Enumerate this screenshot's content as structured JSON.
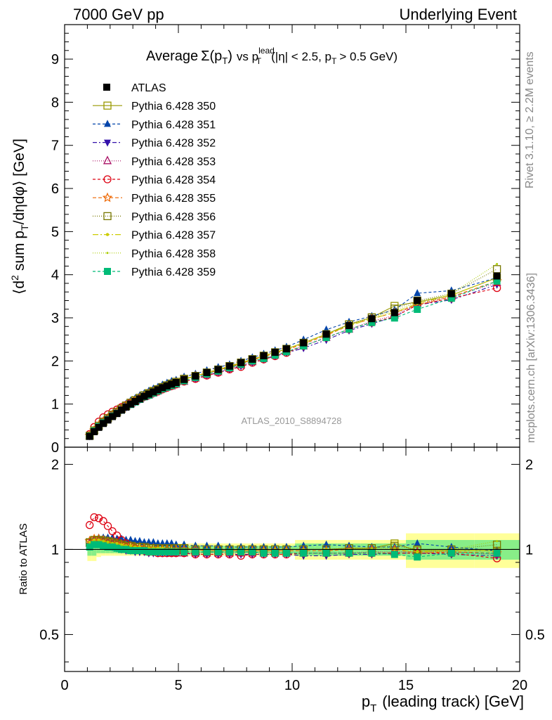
{
  "header": {
    "left": "7000 GeV pp",
    "right": "Underlying Event"
  },
  "side_labels": {
    "rivet": "Rivet 3.1.10, ≥ 2.2M events",
    "mcplots": "mcplots.cern.ch [arXiv:1306.3436]"
  },
  "chart_data": {
    "type": "scatter",
    "title_parts": {
      "average": "Average",
      "sigma": "Σ(p",
      "t_sub": "T",
      "close": ")",
      "vs": "vs p",
      "lead_sup": "lead",
      "lead_sub": "T",
      "cond1": "(|η| < 2.5, p",
      "cond_sub": "T",
      "cond2": "> 0.5 GeV)"
    },
    "analysis_label": "ATLAS_2010_S8894728",
    "ylabel_parts": {
      "main": "⟨d",
      "sup": "2",
      "mid": "sum p",
      "sub": "T",
      "end": "/dηdφ⟩ [GeV]"
    },
    "ratio_ylabel": "Ratio to ATLAS",
    "xlabel_parts": {
      "p": "p",
      "sub": "T",
      "rest": "(leading track) [GeV]"
    },
    "xlim": [
      0,
      20
    ],
    "ylim_main": [
      0,
      9.8
    ],
    "ylim_ratio": [
      0.37,
      2.3
    ],
    "x_ticks": [
      "0",
      "5",
      "10",
      "15",
      "20"
    ],
    "y_ticks_main": [
      "0",
      "1",
      "2",
      "3",
      "4",
      "5",
      "6",
      "7",
      "8",
      "9"
    ],
    "y_ticks_ratio": [
      "0.5",
      "1",
      "2"
    ],
    "legend_position": "top-left",
    "atlas": {
      "name": "ATLAS",
      "x": [
        1.1,
        1.3,
        1.5,
        1.7,
        1.9,
        2.1,
        2.3,
        2.5,
        2.7,
        2.9,
        3.1,
        3.3,
        3.5,
        3.7,
        3.9,
        4.1,
        4.3,
        4.5,
        4.7,
        4.9,
        5.25,
        5.75,
        6.25,
        6.75,
        7.25,
        7.75,
        8.25,
        8.75,
        9.25,
        9.75,
        10.5,
        11.5,
        12.5,
        13.5,
        14.5,
        15.5,
        17.0,
        19.0
      ],
      "y": [
        0.25,
        0.36,
        0.46,
        0.55,
        0.63,
        0.71,
        0.78,
        0.86,
        0.93,
        1.0,
        1.06,
        1.12,
        1.18,
        1.23,
        1.28,
        1.33,
        1.38,
        1.42,
        1.46,
        1.5,
        1.57,
        1.65,
        1.73,
        1.8,
        1.88,
        1.96,
        2.04,
        2.12,
        2.2,
        2.28,
        2.42,
        2.62,
        2.82,
        2.98,
        3.12,
        3.4,
        3.56,
        3.97
      ],
      "band_yellow": [
        0.09,
        0.09,
        0.06,
        0.05,
        0.05,
        0.05,
        0.05,
        0.05,
        0.05,
        0.05,
        0.05,
        0.05,
        0.05,
        0.05,
        0.05,
        0.05,
        0.05,
        0.05,
        0.05,
        0.05,
        0.05,
        0.05,
        0.05,
        0.05,
        0.05,
        0.05,
        0.05,
        0.05,
        0.05,
        0.05,
        0.08,
        0.08,
        0.08,
        0.08,
        0.08,
        0.14,
        0.14,
        0.14
      ],
      "band_green": [
        0.05,
        0.05,
        0.03,
        0.03,
        0.03,
        0.03,
        0.03,
        0.03,
        0.03,
        0.03,
        0.03,
        0.03,
        0.03,
        0.03,
        0.03,
        0.03,
        0.03,
        0.03,
        0.03,
        0.03,
        0.03,
        0.03,
        0.03,
        0.03,
        0.03,
        0.03,
        0.03,
        0.03,
        0.03,
        0.03,
        0.05,
        0.05,
        0.05,
        0.05,
        0.05,
        0.08,
        0.08,
        0.08
      ]
    },
    "series": [
      {
        "name": "Pythia 6.428 350",
        "color": "#999900",
        "marker": "square-open",
        "dash": "solid",
        "ratio": [
          1.06,
          1.08,
          1.08,
          1.08,
          1.07,
          1.06,
          1.05,
          1.04,
          1.04,
          1.03,
          1.03,
          1.02,
          1.02,
          1.02,
          1.02,
          1.01,
          1.01,
          1.01,
          1.01,
          1.01,
          1.01,
          1.0,
          1.0,
          1.0,
          1.0,
          1.0,
          1.0,
          1.0,
          1.0,
          1.0,
          1.0,
          1.0,
          1.01,
          1.01,
          1.05,
          0.99,
          0.99,
          0.99
        ]
      },
      {
        "name": "Pythia 6.428 351",
        "color": "#0044aa",
        "marker": "triangle-up",
        "dash": "4,3",
        "ratio": [
          1.06,
          1.09,
          1.1,
          1.1,
          1.1,
          1.1,
          1.09,
          1.09,
          1.08,
          1.08,
          1.07,
          1.07,
          1.06,
          1.06,
          1.06,
          1.05,
          1.05,
          1.05,
          1.05,
          1.04,
          1.04,
          1.03,
          1.03,
          1.03,
          1.02,
          1.02,
          1.02,
          1.02,
          1.02,
          1.02,
          1.03,
          1.04,
          1.03,
          1.02,
          1.02,
          1.05,
          1.02,
          0.99
        ]
      },
      {
        "name": "Pythia 6.428 352",
        "color": "#3311aa",
        "marker": "triangle-down",
        "dash": "6,3,2,3",
        "ratio": [
          1.03,
          1.05,
          1.05,
          1.04,
          1.03,
          1.02,
          1.01,
          1.0,
          0.99,
          0.99,
          0.98,
          0.98,
          0.98,
          0.97,
          0.97,
          0.97,
          0.97,
          0.97,
          0.97,
          0.97,
          0.97,
          0.96,
          0.96,
          0.96,
          0.96,
          0.96,
          0.96,
          0.96,
          0.96,
          0.96,
          0.95,
          0.95,
          0.96,
          0.96,
          0.97,
          0.97,
          0.96,
          0.95
        ]
      },
      {
        "name": "Pythia 6.428 353",
        "color": "#aa1166",
        "marker": "triangle-up-open",
        "dash": "1,2",
        "ratio": [
          1.05,
          1.07,
          1.07,
          1.06,
          1.05,
          1.04,
          1.03,
          1.02,
          1.01,
          1.0,
          1.0,
          0.99,
          0.99,
          0.98,
          0.98,
          0.98,
          0.98,
          0.98,
          0.97,
          0.97,
          0.97,
          0.97,
          0.97,
          0.97,
          0.97,
          0.97,
          0.97,
          0.97,
          0.97,
          0.97,
          0.97,
          0.97,
          0.97,
          0.98,
          0.98,
          0.98,
          0.98,
          0.96
        ]
      },
      {
        "name": "Pythia 6.428 354",
        "color": "#dd0011",
        "marker": "circle-open",
        "dash": "4,3",
        "ratio": [
          1.22,
          1.3,
          1.29,
          1.26,
          1.21,
          1.16,
          1.12,
          1.08,
          1.05,
          1.03,
          1.01,
          1.0,
          0.99,
          0.98,
          0.98,
          0.97,
          0.97,
          0.97,
          0.97,
          0.97,
          0.97,
          0.96,
          0.96,
          0.96,
          0.96,
          0.95,
          0.96,
          0.96,
          0.96,
          0.96,
          0.97,
          0.97,
          0.97,
          0.97,
          0.97,
          0.97,
          0.97,
          0.93
        ]
      },
      {
        "name": "Pythia 6.428 355",
        "color": "#ee6600",
        "marker": "star-open",
        "dash": "5,3",
        "ratio": [
          1.07,
          1.09,
          1.09,
          1.08,
          1.07,
          1.06,
          1.05,
          1.04,
          1.03,
          1.03,
          1.02,
          1.02,
          1.01,
          1.01,
          1.01,
          1.0,
          1.0,
          1.0,
          1.0,
          1.0,
          1.0,
          1.0,
          0.99,
          0.99,
          0.99,
          0.99,
          0.99,
          0.99,
          0.99,
          0.99,
          0.99,
          0.99,
          1.0,
          1.0,
          1.0,
          0.97,
          0.98,
          0.97
        ]
      },
      {
        "name": "Pythia 6.428 356",
        "color": "#777700",
        "marker": "square-open",
        "dash": "1,2",
        "ratio": [
          1.06,
          1.08,
          1.08,
          1.07,
          1.07,
          1.06,
          1.05,
          1.04,
          1.03,
          1.03,
          1.02,
          1.02,
          1.02,
          1.01,
          1.01,
          1.01,
          1.01,
          1.01,
          1.01,
          1.01,
          1.01,
          1.0,
          1.0,
          1.0,
          1.0,
          1.0,
          1.0,
          1.0,
          1.0,
          1.0,
          1.0,
          1.0,
          1.01,
          1.01,
          1.03,
          1.0,
          1.0,
          1.04
        ]
      },
      {
        "name": "Pythia 6.428 357",
        "color": "#cccc00",
        "marker": "dot",
        "dash": "8,3,2,3",
        "ratio": [
          1.06,
          1.08,
          1.08,
          1.07,
          1.06,
          1.05,
          1.05,
          1.04,
          1.03,
          1.03,
          1.02,
          1.02,
          1.01,
          1.01,
          1.01,
          1.01,
          1.01,
          1.0,
          1.0,
          1.0,
          1.0,
          1.0,
          1.0,
          1.0,
          1.0,
          1.0,
          1.0,
          1.0,
          1.0,
          1.0,
          1.0,
          1.0,
          1.0,
          1.0,
          1.0,
          0.98,
          0.99,
          0.99
        ]
      },
      {
        "name": "Pythia 6.428 358",
        "color": "#aacc00",
        "marker": "dot-small",
        "dash": "1,2",
        "ratio": [
          1.05,
          1.07,
          1.07,
          1.07,
          1.06,
          1.05,
          1.04,
          1.03,
          1.03,
          1.02,
          1.02,
          1.01,
          1.01,
          1.01,
          1.01,
          1.0,
          1.0,
          1.0,
          1.0,
          1.0,
          1.0,
          1.0,
          1.0,
          1.0,
          1.0,
          1.0,
          1.0,
          1.0,
          1.0,
          1.0,
          1.0,
          1.0,
          1.0,
          1.01,
          1.01,
          0.99,
          1.0,
          1.07
        ]
      },
      {
        "name": "Pythia 6.428 359",
        "color": "#00bb77",
        "marker": "square",
        "dash": "4,3",
        "ratio": [
          1.02,
          1.04,
          1.04,
          1.03,
          1.02,
          1.02,
          1.01,
          1.0,
          1.0,
          0.99,
          0.99,
          0.99,
          0.99,
          0.98,
          0.98,
          0.98,
          0.98,
          0.98,
          0.98,
          0.98,
          0.98,
          0.98,
          0.98,
          0.98,
          0.98,
          0.98,
          0.98,
          0.97,
          0.97,
          0.97,
          0.97,
          0.97,
          0.97,
          0.97,
          0.96,
          0.94,
          0.97,
          0.97
        ]
      }
    ]
  }
}
